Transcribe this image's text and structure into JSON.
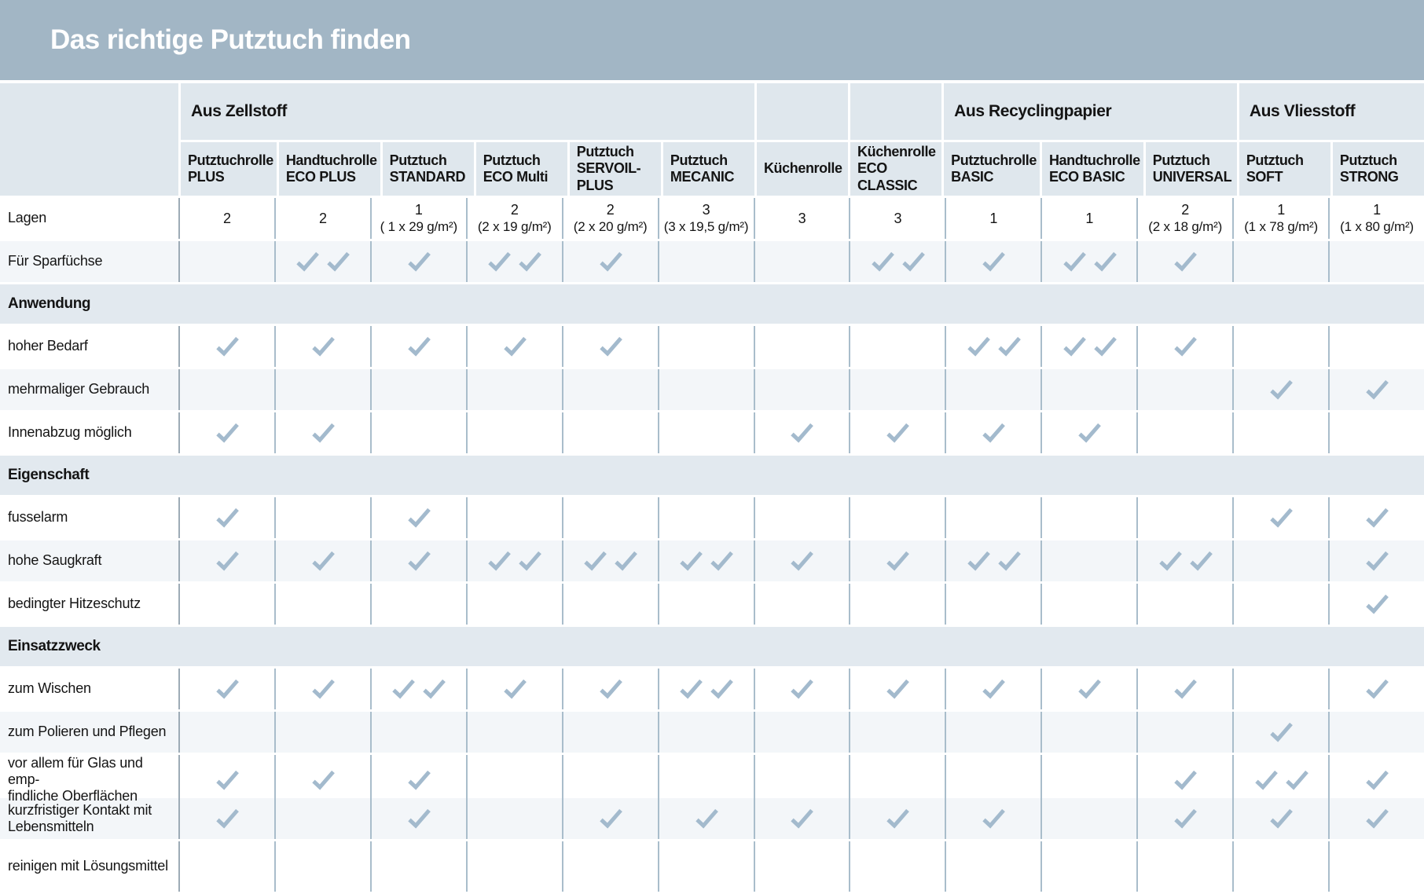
{
  "title": "Das richtige Putztuch finden",
  "colors": {
    "title_band": "#a2b6c5",
    "header_bg": "#dfe7ed",
    "section_band_bg": "#e2e9ef",
    "row_shade": "#f3f6f9",
    "grid_line": "#a9bdcb",
    "checkmark": "#a3bacd",
    "title_text": "#ffffff",
    "body_text": "#141414"
  },
  "header": {
    "groups": [
      {
        "label": "Aus Zellstoff",
        "span": 6
      },
      {
        "label": "",
        "span": 1
      },
      {
        "label": "",
        "span": 1
      },
      {
        "label": "Aus Recyclingpapier",
        "span": 3
      },
      {
        "label": "Aus Vliesstoff",
        "span": 2
      }
    ],
    "columns": [
      {
        "lines": [
          "Putztuchrolle",
          "PLUS"
        ]
      },
      {
        "lines": [
          "Handtuchrolle",
          "ECO PLUS"
        ]
      },
      {
        "lines": [
          "Putztuch",
          "STANDARD"
        ]
      },
      {
        "lines": [
          "Putztuch",
          "ECO Multi"
        ]
      },
      {
        "lines": [
          "Putztuch",
          "SERVOIL-",
          "PLUS"
        ]
      },
      {
        "lines": [
          "Putztuch",
          "MECANIC"
        ]
      },
      {
        "lines": [
          "Küchenrolle"
        ]
      },
      {
        "lines": [
          "Küchenrolle",
          "ECO CLASSIC"
        ]
      },
      {
        "lines": [
          "Putztuchrolle",
          "BASIC"
        ]
      },
      {
        "lines": [
          "Handtuchrolle",
          "ECO BASIC"
        ]
      },
      {
        "lines": [
          "Putztuch",
          "UNIVERSAL"
        ]
      },
      {
        "lines": [
          "Putztuch",
          "SOFT"
        ]
      },
      {
        "lines": [
          "Putztuch",
          "STRONG"
        ]
      }
    ]
  },
  "rows": [
    {
      "type": "values",
      "label": [
        "Lagen"
      ],
      "cells": [
        {
          "v": "2"
        },
        {
          "v": "2"
        },
        {
          "v": "1",
          "sub": "( 1 x 29 g/m²)"
        },
        {
          "v": "2",
          "sub": "(2 x 19 g/m²)"
        },
        {
          "v": "2",
          "sub": "(2 x 20 g/m²)"
        },
        {
          "v": "3",
          "sub": "(3 x 19,5 g/m²)"
        },
        {
          "v": "3"
        },
        {
          "v": "3"
        },
        {
          "v": "1"
        },
        {
          "v": "1"
        },
        {
          "v": "2",
          "sub": "(2 x 18 g/m²)"
        },
        {
          "v": "1",
          "sub": "(1 x 78 g/m²)"
        },
        {
          "v": "1",
          "sub": "(1 x 80 g/m²)"
        }
      ]
    },
    {
      "type": "checks",
      "label": [
        "Für Sparfüchse"
      ],
      "checks": [
        0,
        2,
        1,
        2,
        1,
        0,
        0,
        2,
        1,
        2,
        1,
        0,
        0
      ]
    },
    {
      "type": "section",
      "label": [
        "Anwendung"
      ]
    },
    {
      "type": "checks",
      "label": [
        "hoher Bedarf"
      ],
      "checks": [
        1,
        1,
        1,
        1,
        1,
        0,
        0,
        0,
        2,
        2,
        1,
        0,
        0
      ]
    },
    {
      "type": "checks",
      "label": [
        "mehrmaliger Gebrauch"
      ],
      "checks": [
        0,
        0,
        0,
        0,
        0,
        0,
        0,
        0,
        0,
        0,
        0,
        1,
        1
      ]
    },
    {
      "type": "checks",
      "label": [
        "Innenabzug möglich"
      ],
      "checks": [
        1,
        1,
        0,
        0,
        0,
        0,
        1,
        1,
        1,
        1,
        0,
        0,
        0
      ]
    },
    {
      "type": "section",
      "label": [
        "Eigenschaft"
      ]
    },
    {
      "type": "checks",
      "label": [
        "fusselarm"
      ],
      "checks": [
        1,
        0,
        1,
        0,
        0,
        0,
        0,
        0,
        0,
        0,
        0,
        1,
        1
      ]
    },
    {
      "type": "checks",
      "label": [
        "hohe Saugkraft"
      ],
      "checks": [
        1,
        1,
        1,
        2,
        2,
        2,
        1,
        1,
        2,
        0,
        2,
        0,
        1
      ]
    },
    {
      "type": "checks",
      "label": [
        "bedingter Hitzeschutz"
      ],
      "checks": [
        0,
        0,
        0,
        0,
        0,
        0,
        0,
        0,
        0,
        0,
        0,
        0,
        1
      ]
    },
    {
      "type": "section",
      "label": [
        "Einsatzzweck"
      ]
    },
    {
      "type": "checks",
      "label": [
        "zum Wischen"
      ],
      "checks": [
        1,
        1,
        2,
        1,
        1,
        2,
        1,
        1,
        1,
        1,
        1,
        0,
        1
      ]
    },
    {
      "type": "checks",
      "label": [
        "zum Polieren und Pflegen"
      ],
      "checks": [
        0,
        0,
        0,
        0,
        0,
        0,
        0,
        0,
        0,
        0,
        0,
        1,
        0
      ]
    },
    {
      "type": "checks",
      "label": [
        "vor allem für Glas und emp-",
        "findliche Oberflächen"
      ],
      "checks": [
        1,
        1,
        1,
        0,
        0,
        0,
        0,
        0,
        0,
        0,
        1,
        2,
        1
      ]
    },
    {
      "type": "checks",
      "label": [
        "kurzfristiger Kontakt mit",
        "Lebensmitteln"
      ],
      "checks": [
        1,
        0,
        1,
        0,
        1,
        1,
        1,
        1,
        1,
        0,
        1,
        1,
        1
      ]
    },
    {
      "type": "checks",
      "label": [
        "reinigen mit Lösungsmittel"
      ],
      "checks": [
        0,
        0,
        0,
        0,
        0,
        0,
        0,
        0,
        0,
        0,
        0,
        0,
        0
      ]
    }
  ]
}
